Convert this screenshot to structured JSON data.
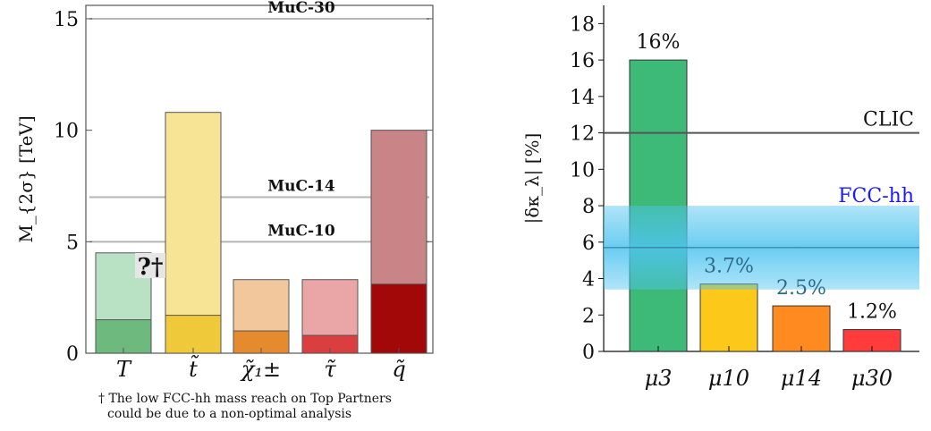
{
  "chart_data": [
    {
      "type": "bar",
      "ylabel": "M_{2σ} [TeV]",
      "ylim": [
        0,
        15.6
      ],
      "yticks": [
        0,
        5,
        10,
        15
      ],
      "categories": [
        "T",
        "t̃",
        "χ̃₁±",
        "τ̃",
        "q̃"
      ],
      "series": [
        {
          "values": [
            4.5,
            10.8,
            3.3,
            3.3,
            10.0
          ]
        },
        {
          "values": [
            1.5,
            1.7,
            1.0,
            0.8,
            3.1
          ]
        }
      ],
      "colors": {
        "light": [
          "#b9e2c4",
          "#f7e494",
          "#f2c79b",
          "#eaa6a6",
          "#c88487"
        ],
        "dark": [
          "#6db97e",
          "#efc93a",
          "#e68a2e",
          "#db3e3e",
          "#a30808"
        ]
      },
      "reference_lines": [
        {
          "label": "MuC-30",
          "value": 15
        },
        {
          "label": "MuC-14",
          "value": 7
        },
        {
          "label": "MuC-10",
          "value": 5
        }
      ],
      "annotation": "?†",
      "footnote": [
        "† The low FCC-hh mass reach on Top Partners",
        "could be due to a non-optimal analysis"
      ],
      "grid": false
    },
    {
      "type": "bar",
      "ylabel": "|δκ_λ| [%]",
      "ylim": [
        0,
        19
      ],
      "yticks": [
        0,
        2,
        4,
        6,
        8,
        10,
        12,
        14,
        16,
        18
      ],
      "categories": [
        "μ3",
        "μ10",
        "μ14",
        "μ30"
      ],
      "values": [
        16,
        3.7,
        2.5,
        1.2
      ],
      "value_labels": [
        "16%",
        "3.7%",
        "2.5%",
        "1.2%"
      ],
      "colors": [
        "#3dba78",
        "#fcc81a",
        "#ff8a1f",
        "#ff3b3b"
      ],
      "reference_lines": [
        {
          "label": "CLIC",
          "value": 12,
          "color": "#555555"
        }
      ],
      "reference_bands": [
        {
          "label": "FCC-hh",
          "low": 3.4,
          "high": 8.0,
          "center": 5.7,
          "color": "#4fc4f0",
          "label_color": "#1a1aff"
        }
      ],
      "grid": false
    }
  ]
}
